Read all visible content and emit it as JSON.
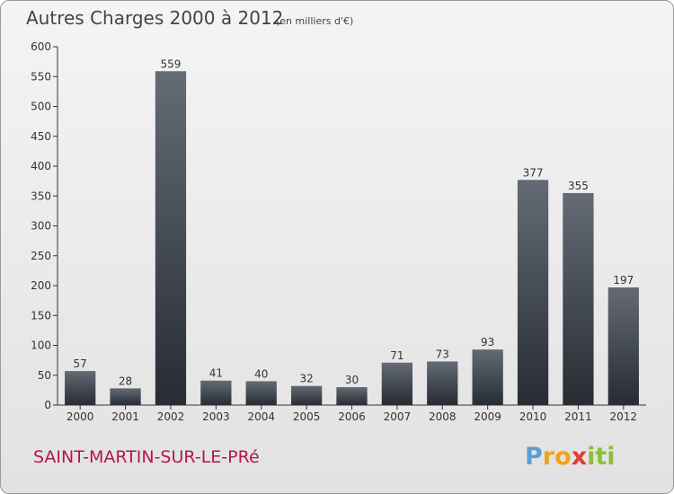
{
  "header": {
    "title": "Autres Charges 2000 à 2012",
    "subtitle": "(en milliers d'€)"
  },
  "commune": "SAINT-MARTIN-SUR-LE-PRé",
  "logo": {
    "text": "Proxiti",
    "letters": [
      {
        "ch": "P",
        "color": "#5aa0d6"
      },
      {
        "ch": "r",
        "color": "#f2a31b"
      },
      {
        "ch": "o",
        "color": "#f2a31b"
      },
      {
        "ch": "x",
        "color": "#e03a3a"
      },
      {
        "ch": "i",
        "color": "#8dbf3a"
      },
      {
        "ch": "t",
        "color": "#8dbf3a"
      },
      {
        "ch": "i",
        "color": "#8dbf3a"
      }
    ]
  },
  "chart_data": {
    "type": "bar",
    "categories": [
      "2000",
      "2001",
      "2002",
      "2003",
      "2004",
      "2005",
      "2006",
      "2007",
      "2008",
      "2009",
      "2010",
      "2011",
      "2012"
    ],
    "values": [
      57,
      28,
      559,
      41,
      40,
      32,
      30,
      71,
      73,
      93,
      377,
      355,
      197
    ],
    "title": "Autres Charges 2000 à 2012",
    "subtitle": "(en milliers d'€)",
    "ylim": [
      0,
      600
    ],
    "yticks": [
      0,
      50,
      100,
      150,
      200,
      250,
      300,
      350,
      400,
      450,
      500,
      550,
      600
    ],
    "grid": false,
    "data_labels": true,
    "bar_color": "#3a4048"
  }
}
